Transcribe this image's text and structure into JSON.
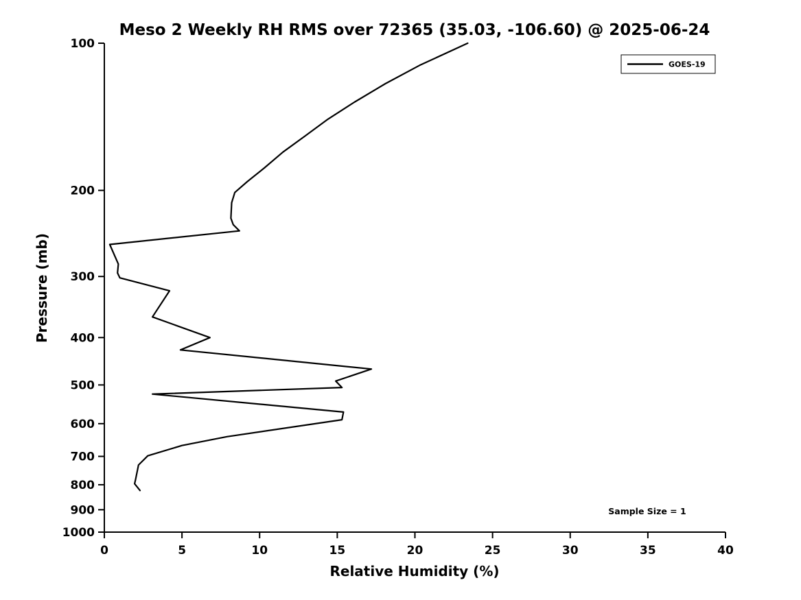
{
  "figure": {
    "background": "#ffffff",
    "line_color": "#000000"
  },
  "chart_data": {
    "type": "line",
    "title": "Meso 2 Weekly RH RMS over 72365 (35.03, -106.60) @ 2025-06-24",
    "xlabel": "Relative Humidity (%)",
    "ylabel": "Pressure (mb)",
    "xlim": [
      0,
      40
    ],
    "ylim": [
      1000,
      100
    ],
    "yscale": "log",
    "grid": false,
    "x_ticks": [
      0,
      5,
      10,
      15,
      20,
      25,
      30,
      35,
      40
    ],
    "y_ticks": [
      100,
      200,
      300,
      400,
      500,
      600,
      700,
      800,
      900,
      1000
    ],
    "legend": {
      "position": "top-right",
      "entries": [
        {
          "label": "GOES-19",
          "color": "#000000",
          "style": "solid"
        }
      ]
    },
    "annotations": [
      {
        "text": "Sample Size = 1"
      }
    ],
    "series": [
      {
        "name": "GOES-19",
        "color": "#000000",
        "points_format": "[relative_humidity_percent, pressure_mb]",
        "points": [
          [
            23.4,
            100
          ],
          [
            20.3,
            111
          ],
          [
            18.1,
            121
          ],
          [
            16.1,
            132
          ],
          [
            14.4,
            143
          ],
          [
            12.9,
            155
          ],
          [
            11.5,
            167
          ],
          [
            10.3,
            180
          ],
          [
            9.2,
            192
          ],
          [
            8.4,
            202
          ],
          [
            8.2,
            212
          ],
          [
            8.15,
            228
          ],
          [
            8.3,
            235
          ],
          [
            8.7,
            242
          ],
          [
            0.35,
            258
          ],
          [
            0.9,
            283
          ],
          [
            0.85,
            295
          ],
          [
            1.0,
            302
          ],
          [
            4.2,
            321
          ],
          [
            3.1,
            363
          ],
          [
            6.8,
            400
          ],
          [
            4.9,
            424
          ],
          [
            17.2,
            464
          ],
          [
            14.9,
            491
          ],
          [
            15.3,
            506
          ],
          [
            3.1,
            522
          ],
          [
            15.4,
            568
          ],
          [
            15.3,
            589
          ],
          [
            7.9,
            638
          ],
          [
            5.0,
            665
          ],
          [
            2.8,
            698
          ],
          [
            2.2,
            729
          ],
          [
            2.0,
            783
          ],
          [
            1.95,
            796
          ],
          [
            2.3,
            822
          ]
        ]
      }
    ]
  }
}
